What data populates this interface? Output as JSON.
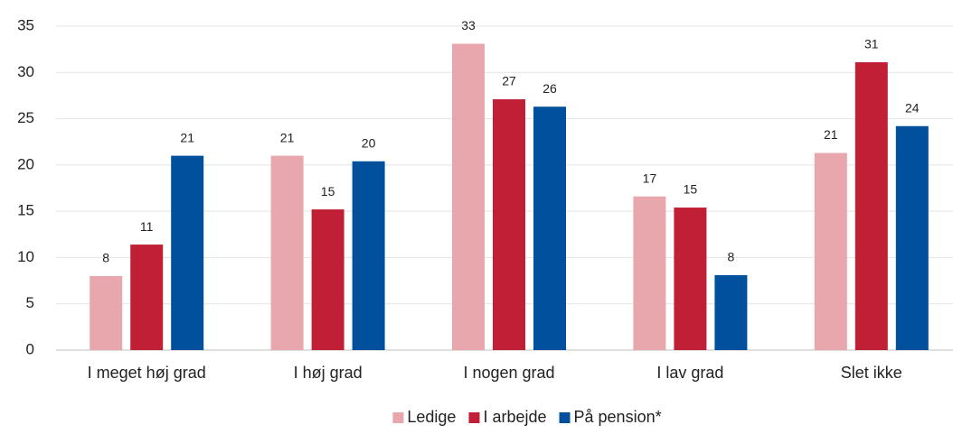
{
  "chart_data": {
    "type": "bar",
    "categories": [
      "I meget høj grad",
      "I høj grad",
      "I nogen grad",
      "I lav grad",
      "Slet ikke"
    ],
    "series": [
      {
        "name": "Ledige",
        "color": "#e8a6ad",
        "values": [
          8.0,
          21.0,
          33.1,
          16.6,
          21.3
        ],
        "value_labels": [
          "8",
          "21",
          "33",
          "17",
          "21"
        ]
      },
      {
        "name": "I arbejde",
        "color": "#c01f35",
        "values": [
          11.4,
          15.2,
          27.1,
          15.4,
          31.1
        ],
        "value_labels": [
          "11",
          "15",
          "27",
          "15",
          "31"
        ]
      },
      {
        "name": "På pension*",
        "color": "#00509e",
        "values": [
          21.0,
          20.4,
          26.3,
          8.1,
          24.2
        ],
        "value_labels": [
          "21",
          "20",
          "26",
          "8",
          "24"
        ]
      }
    ],
    "ylim": [
      0,
      35
    ],
    "yticks": [
      0,
      5,
      10,
      15,
      20,
      25,
      30,
      35
    ],
    "grid": true,
    "legend": "bottom"
  }
}
